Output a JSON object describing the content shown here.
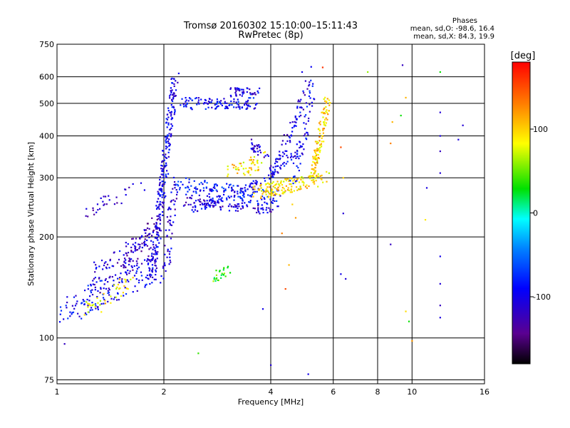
{
  "chart_data": {
    "type": "scatter",
    "title": "Tromsø 20160302 15:10:00–15:11:43",
    "subtitle": "RwPretec (8p)",
    "xlabel": "Frequency [MHz]",
    "ylabel": "Stationary phase Virtual Height [km]",
    "x_scale": "log",
    "y_scale": "log",
    "xlim": [
      1,
      16
    ],
    "ylim": [
      73,
      750
    ],
    "x_ticks": [
      1,
      2,
      4,
      6,
      8,
      10,
      16
    ],
    "x_tick_labels": [
      "1",
      "2",
      "4",
      "6",
      "8",
      "10",
      "16"
    ],
    "y_ticks": [
      75,
      100,
      200,
      300,
      400,
      500,
      600,
      750
    ],
    "y_tick_labels": [
      "75",
      "100",
      "200",
      "300",
      "400",
      "500",
      "600",
      "750"
    ],
    "grid": true,
    "annotation": {
      "heading": "Phases",
      "line1": "mean, sd,O: -98.6, 16.4",
      "line2": "mean, sd,X: 84.3, 19.9"
    },
    "colorbar": {
      "label": "[deg]",
      "range": [
        -180,
        180
      ],
      "ticks": [
        100,
        0,
        -100
      ],
      "tick_labels": [
        "100",
        "0",
        "-100"
      ],
      "colormap": "rainbow"
    },
    "traces": [
      {
        "x0": 1.03,
        "x1": 1.9,
        "y0": 120,
        "y1": 160,
        "curve": 0,
        "phase": -95,
        "n": 140,
        "jitter": 0.1
      },
      {
        "x0": 1.2,
        "x1": 1.6,
        "y0": 120,
        "y1": 145,
        "curve": 0,
        "phase": 90,
        "n": 40,
        "jitter": 0.06
      },
      {
        "x0": 1.25,
        "x1": 1.9,
        "y0": 150,
        "y1": 195,
        "curve": 0,
        "phase": -110,
        "n": 90,
        "jitter": 0.12
      },
      {
        "x0": 1.5,
        "x1": 1.95,
        "y0": 160,
        "y1": 225,
        "curve": 0,
        "phase": -120,
        "n": 70,
        "jitter": 0.06
      },
      {
        "x0": 1.2,
        "x1": 1.75,
        "y0": 240,
        "y1": 280,
        "curve": 0,
        "phase": -115,
        "n": 30,
        "jitter": 0.05
      },
      {
        "x0": 1.85,
        "x1": 2.15,
        "y0": 150,
        "y1": 600,
        "curve": 0,
        "phase": -100,
        "n": 260,
        "jitter": 0.03
      },
      {
        "x0": 2.0,
        "x1": 2.15,
        "y0": 140,
        "y1": 300,
        "curve": 0,
        "phase": -110,
        "n": 60,
        "jitter": 0.02
      },
      {
        "x0": 2.25,
        "x1": 3.6,
        "y0": 500,
        "y1": 500,
        "curve": 0,
        "phase": -95,
        "n": 110,
        "jitter": 0.04
      },
      {
        "x0": 3.1,
        "x1": 3.7,
        "y0": 540,
        "y1": 540,
        "curve": 0,
        "phase": -100,
        "n": 40,
        "jitter": 0.03
      },
      {
        "x0": 3.5,
        "x1": 3.9,
        "y0": 380,
        "y1": 350,
        "curve": 0,
        "phase": -110,
        "n": 30,
        "jitter": 0.03
      },
      {
        "x0": 2.2,
        "x1": 4.2,
        "y0": 285,
        "y1": 260,
        "curve": 0,
        "phase": -85,
        "n": 150,
        "jitter": 0.06
      },
      {
        "x0": 2.3,
        "x1": 4.0,
        "y0": 255,
        "y1": 240,
        "curve": 0,
        "phase": -110,
        "n": 90,
        "jitter": 0.03
      },
      {
        "x0": 2.4,
        "x1": 4.8,
        "y0": 240,
        "y1": 320,
        "curve": 0.18,
        "phase": -100,
        "n": 110,
        "jitter": 0.02
      },
      {
        "x0": 4.0,
        "x1": 5.3,
        "y0": 300,
        "y1": 600,
        "curve": 0.1,
        "phase": -100,
        "n": 80,
        "jitter": 0.03
      },
      {
        "x0": 4.6,
        "x1": 5.25,
        "y0": 290,
        "y1": 520,
        "curve": 0.08,
        "phase": -95,
        "n": 60,
        "jitter": 0.02
      },
      {
        "x0": 3.6,
        "x1": 5.7,
        "y0": 270,
        "y1": 300,
        "curve": 0,
        "phase": 95,
        "n": 150,
        "jitter": 0.05
      },
      {
        "x0": 5.2,
        "x1": 5.8,
        "y0": 300,
        "y1": 500,
        "curve": 0.05,
        "phase": 100,
        "n": 120,
        "jitter": 0.02
      },
      {
        "x0": 3.05,
        "x1": 3.9,
        "y0": 310,
        "y1": 340,
        "curve": 0,
        "phase": 95,
        "n": 50,
        "jitter": 0.06
      },
      {
        "x0": 2.7,
        "x1": 3.05,
        "y0": 150,
        "y1": 160,
        "curve": 0,
        "phase": 40,
        "n": 25,
        "jitter": 0.05
      }
    ],
    "sparse_points": [
      [
        9.4,
        650,
        -120
      ],
      [
        12.0,
        620,
        30
      ],
      [
        7.5,
        620,
        60
      ],
      [
        5.6,
        640,
        160
      ],
      [
        4.9,
        620,
        -100
      ],
      [
        9.6,
        520,
        110
      ],
      [
        12.0,
        470,
        -110
      ],
      [
        12.0,
        400,
        -105
      ],
      [
        12.0,
        360,
        -120
      ],
      [
        12.0,
        310,
        -110
      ],
      [
        9.3,
        460,
        30
      ],
      [
        8.7,
        380,
        130
      ],
      [
        8.8,
        440,
        110
      ],
      [
        6.3,
        370,
        150
      ],
      [
        6.4,
        300,
        100
      ],
      [
        6.4,
        235,
        -110
      ],
      [
        6.3,
        155,
        -100
      ],
      [
        6.5,
        150,
        -110
      ],
      [
        8.7,
        190,
        -120
      ],
      [
        12.0,
        175,
        -100
      ],
      [
        12.0,
        145,
        -110
      ],
      [
        12.0,
        125,
        -120
      ],
      [
        12.0,
        115,
        -105
      ],
      [
        9.6,
        120,
        95
      ],
      [
        9.8,
        112,
        30
      ],
      [
        11.0,
        280,
        -105
      ],
      [
        10.9,
        225,
        90
      ],
      [
        10.0,
        98,
        120
      ],
      [
        4.0,
        83,
        -110
      ],
      [
        5.1,
        78,
        -100
      ],
      [
        2.5,
        90,
        40
      ],
      [
        1.05,
        96,
        -120
      ],
      [
        3.8,
        122,
        -100
      ],
      [
        4.4,
        140,
        150
      ],
      [
        4.5,
        165,
        110
      ],
      [
        4.3,
        205,
        130
      ],
      [
        4.6,
        250,
        100
      ],
      [
        4.7,
        228,
        120
      ],
      [
        13.5,
        390,
        -105
      ],
      [
        13.9,
        430,
        -110
      ]
    ]
  }
}
